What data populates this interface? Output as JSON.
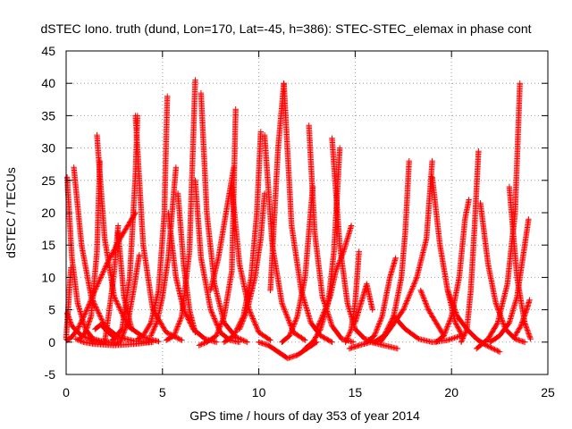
{
  "chart_data": {
    "type": "scatter",
    "title": "dSTEC Iono. truth (dund, Lon=170, Lat=-45, h=386): STEC-STEC_elemax in phase cont",
    "xlabel": "GPS time / hours of day 353 of year 2014",
    "ylabel": "dSTEC  / TECUs",
    "xlim": [
      0,
      25
    ],
    "ylim": [
      -5,
      45
    ],
    "xticks": [
      "0",
      "5",
      "10",
      "15",
      "20",
      "25"
    ],
    "yticks": [
      "-5",
      "0",
      "5",
      "10",
      "15",
      "20",
      "25",
      "30",
      "35",
      "40",
      "45"
    ],
    "grid": true,
    "marker": "+",
    "color": "#ff0000",
    "series": [
      {
        "x": [
          0.05,
          0.3,
          0.6,
          1.0,
          1.4,
          1.9,
          2.2
        ],
        "y": [
          25.5,
          13,
          6,
          2,
          0.5,
          0.1,
          0
        ]
      },
      {
        "x": [
          0.0,
          0.1,
          0.25
        ],
        "y": [
          0.5,
          5,
          11.5
        ]
      },
      {
        "x": [
          0.05,
          0.3,
          0.8,
          1.4,
          2.2,
          2.8
        ],
        "y": [
          4.5,
          2.5,
          1,
          0.3,
          0,
          0
        ]
      },
      {
        "x": [
          0.4,
          0.8,
          1.3,
          2.0,
          2.7,
          3.5,
          4.3
        ],
        "y": [
          27,
          15,
          7,
          2.5,
          0.8,
          0.2,
          0
        ]
      },
      {
        "x": [
          0.05,
          0.3,
          0.6,
          1.0,
          1.5,
          2.1,
          2.8,
          3.6
        ],
        "y": [
          0.3,
          0.8,
          2,
          4.5,
          8,
          12,
          16,
          20
        ]
      },
      {
        "x": [
          0.5,
          0.9,
          1.5,
          2.5,
          3.5,
          4.5
        ],
        "y": [
          0.5,
          0,
          -0.3,
          -0.5,
          -0.3,
          0
        ]
      },
      {
        "x": [
          0.7,
          1.0,
          1.3,
          1.6,
          1.75
        ],
        "y": [
          0.5,
          1.5,
          4,
          14,
          28
        ]
      },
      {
        "x": [
          1.6,
          2.0,
          2.5,
          3.2,
          4.0,
          4.8
        ],
        "y": [
          32,
          16,
          7,
          2.5,
          0.8,
          0.1
        ]
      },
      {
        "x": [
          1.5,
          1.8,
          2.2,
          2.6
        ],
        "y": [
          2,
          2.7,
          1.5,
          0.5
        ]
      },
      {
        "x": [
          2.0,
          2.2,
          2.5,
          2.7
        ],
        "y": [
          0,
          4,
          11,
          18
        ]
      },
      {
        "x": [
          2.4,
          2.9,
          3.3,
          3.6,
          3.7
        ],
        "y": [
          0.3,
          2,
          10,
          26,
          35
        ]
      },
      {
        "x": [
          2.8,
          3.2,
          3.5,
          3.8
        ],
        "y": [
          0,
          3,
          8,
          13.5
        ]
      },
      {
        "x": [
          2.7,
          3.0,
          3.4
        ],
        "y": [
          17,
          7,
          2
        ]
      },
      {
        "x": [
          3.6,
          4.0,
          4.5,
          5.2,
          6.0
        ],
        "y": [
          35,
          15,
          5,
          1.5,
          0.3
        ]
      },
      {
        "x": [
          3.7,
          4.0,
          4.4,
          4.8,
          5.1,
          5.25
        ],
        "y": [
          0.5,
          1,
          3,
          8,
          20,
          38
        ]
      },
      {
        "x": [
          4.4,
          4.7,
          5.0,
          5.3,
          5.5,
          5.7
        ],
        "y": [
          1,
          3,
          7,
          13,
          20,
          27
        ]
      },
      {
        "x": [
          5.3,
          5.7,
          6.1,
          6.6,
          7.2,
          7.8
        ],
        "y": [
          20,
          10,
          5,
          2,
          0.5,
          0
        ]
      },
      {
        "x": [
          5.2,
          5.6,
          6.0,
          6.4,
          6.7
        ],
        "y": [
          0.3,
          1,
          4,
          14,
          40.5
        ]
      },
      {
        "x": [
          5.8,
          6.1,
          6.4,
          6.7
        ],
        "y": [
          23,
          12,
          5,
          1.5
        ]
      },
      {
        "x": [
          6.7,
          7.0,
          7.5,
          8.0,
          8.5,
          9.0
        ],
        "y": [
          25,
          13,
          5,
          1.5,
          0.3,
          0
        ]
      },
      {
        "x": [
          7.0,
          7.3,
          7.7,
          8.2,
          8.8,
          9.4
        ],
        "y": [
          38.5,
          20,
          9,
          3,
          0.8,
          0
        ]
      },
      {
        "x": [
          6.9,
          7.3,
          7.8,
          8.2,
          8.6,
          8.8
        ],
        "y": [
          -0.5,
          0,
          1,
          4,
          11,
          36
        ]
      },
      {
        "x": [
          7.5,
          7.9,
          8.3,
          8.7
        ],
        "y": [
          8,
          13,
          20,
          27
        ]
      },
      {
        "x": [
          8.6,
          9.0,
          9.5,
          10.0,
          10.6
        ],
        "y": [
          24,
          12,
          5,
          1.5,
          0.3
        ]
      },
      {
        "x": [
          8.2,
          8.7,
          9.2,
          9.6,
          9.9,
          10.1
        ],
        "y": [
          0,
          1,
          4,
          10,
          20,
          32.5
        ]
      },
      {
        "x": [
          9.0,
          9.4,
          9.8,
          10.1,
          10.3
        ],
        "y": [
          2,
          5,
          10,
          16,
          23
        ]
      },
      {
        "x": [
          10.3,
          10.7,
          11.2,
          11.8,
          12.4
        ],
        "y": [
          32,
          15,
          6,
          1.5,
          0.3
        ]
      },
      {
        "x": [
          10.0,
          10.5,
          11.0,
          11.5,
          12.0,
          12.5,
          13.0
        ],
        "y": [
          0,
          -0.5,
          -1.5,
          -2.5,
          -2,
          -1,
          0
        ]
      },
      {
        "x": [
          10.6,
          11.0,
          11.3
        ],
        "y": [
          8,
          30,
          40
        ]
      },
      {
        "x": [
          11.3,
          11.7,
          12.2,
          12.7,
          13.2,
          13.8
        ],
        "y": [
          40,
          18,
          8,
          3,
          1,
          0
        ]
      },
      {
        "x": [
          11.2,
          11.6,
          12.0,
          12.4,
          12.6,
          12.8
        ],
        "y": [
          0,
          1,
          4,
          10,
          17,
          24
        ]
      },
      {
        "x": [
          12.6,
          12.9,
          13.3,
          13.8,
          14.3,
          14.9
        ],
        "y": [
          33.5,
          17,
          7,
          2.5,
          0.5,
          0
        ]
      },
      {
        "x": [
          12.4,
          12.8,
          13.2,
          13.6,
          13.9,
          14.2
        ],
        "y": [
          -1,
          0,
          2,
          6,
          14,
          30
        ]
      },
      {
        "x": [
          13.0,
          13.3,
          13.7,
          14.0,
          14.4,
          14.8
        ],
        "y": [
          2,
          4,
          7,
          11,
          14,
          18
        ]
      },
      {
        "x": [
          13.8,
          14.2,
          14.6,
          15.0,
          15.5,
          16.1
        ],
        "y": [
          31.5,
          15,
          6,
          2,
          0.5,
          0
        ]
      },
      {
        "x": [
          14.5,
          14.8,
          15.0,
          15.2
        ],
        "y": [
          0,
          2,
          6,
          14
        ]
      },
      {
        "x": [
          14.7,
          15.2,
          15.8,
          16.5,
          17.2
        ],
        "y": [
          -1,
          -0.5,
          0,
          -0.5,
          -1
        ]
      },
      {
        "x": [
          15.0,
          15.3,
          15.6,
          15.9
        ],
        "y": [
          3,
          6,
          9,
          5
        ]
      },
      {
        "x": [
          15.6,
          16.0,
          16.4,
          16.8,
          17.1
        ],
        "y": [
          0,
          1,
          4,
          10,
          13
        ]
      },
      {
        "x": [
          16.0,
          16.5,
          17.0,
          17.4,
          17.6,
          17.8
        ],
        "y": [
          0,
          1,
          4,
          10,
          17,
          28
        ]
      },
      {
        "x": [
          16.3,
          16.8,
          17.5,
          18.2,
          18.7,
          19.0
        ],
        "y": [
          0,
          2,
          5,
          10,
          16,
          28
        ]
      },
      {
        "x": [
          17.0,
          17.6,
          18.3,
          19.0,
          19.8,
          20.5
        ],
        "y": [
          4,
          2,
          0.5,
          0,
          0.3,
          1
        ]
      },
      {
        "x": [
          18.4,
          18.8,
          19.2,
          19.6
        ],
        "y": [
          8,
          5,
          3,
          1
        ]
      },
      {
        "x": [
          19.0,
          19.4,
          19.8,
          20.2,
          20.6
        ],
        "y": [
          25.5,
          15,
          8,
          3,
          0.8
        ]
      },
      {
        "x": [
          19.2,
          19.6,
          20.0,
          20.4,
          20.7,
          20.9
        ],
        "y": [
          0,
          1,
          4,
          10,
          19,
          22
        ]
      },
      {
        "x": [
          20.5,
          20.8,
          21.0,
          21.2,
          21.4
        ],
        "y": [
          0,
          2,
          8,
          18,
          29.5
        ]
      },
      {
        "x": [
          19.8,
          20.3,
          20.8,
          21.3,
          21.8,
          22.5
        ],
        "y": [
          8,
          4,
          2,
          0.5,
          -0.5,
          -1.5
        ]
      },
      {
        "x": [
          21.5,
          21.9,
          22.3,
          22.8,
          23.3,
          23.8
        ],
        "y": [
          21.5,
          12,
          6,
          2,
          0.5,
          0
        ]
      },
      {
        "x": [
          21.3,
          21.9,
          22.4,
          22.9,
          23.3,
          23.55
        ],
        "y": [
          -1,
          0.5,
          3,
          9,
          20,
          40
        ]
      },
      {
        "x": [
          22.0,
          22.5,
          23.0,
          23.4,
          23.7,
          24.0
        ],
        "y": [
          0,
          1,
          3,
          7,
          13,
          19
        ]
      },
      {
        "x": [
          23.0,
          23.4,
          23.8,
          24.1
        ],
        "y": [
          24,
          10,
          3,
          0.5
        ]
      },
      {
        "x": [
          23.3,
          23.6,
          23.9,
          24.05
        ],
        "y": [
          1,
          2.5,
          5,
          6.5
        ]
      }
    ]
  }
}
